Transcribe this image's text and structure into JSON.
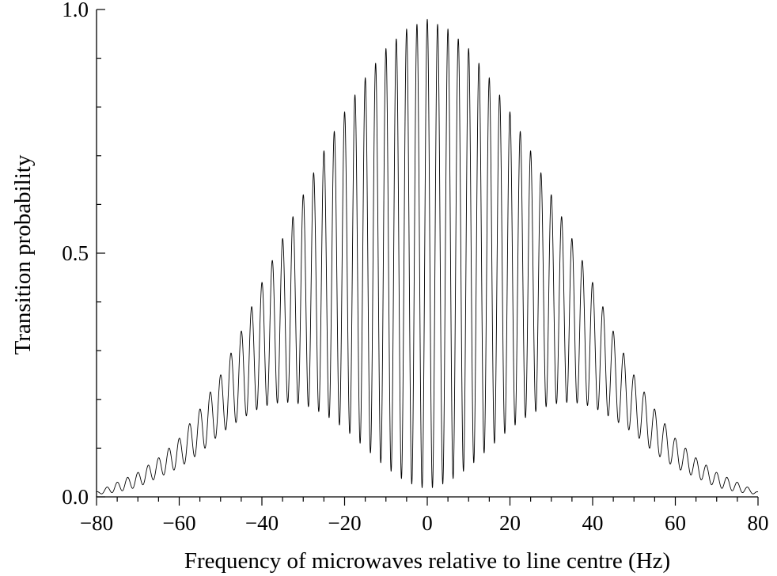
{
  "chart_data": {
    "type": "line",
    "title": "",
    "xlabel": "Frequency of microwaves relative to line centre (Hz)",
    "ylabel": "Transition probability",
    "xlim": [
      -80,
      80
    ],
    "ylim": [
      0,
      1
    ],
    "x_ticks": [
      -80,
      -60,
      -40,
      -20,
      0,
      20,
      40,
      60,
      80
    ],
    "x_tick_labels": [
      "−80",
      "−60",
      "−40",
      "−20",
      "0",
      "20",
      "40",
      "60",
      "80"
    ],
    "y_ticks": [
      0,
      0.5,
      1
    ],
    "y_tick_labels": [
      "0.0",
      "0.5",
      "1.0"
    ],
    "grid": false,
    "legend": "none",
    "line_color": "#000000",
    "series": [
      {
        "fringe_period_hz": 2.5,
        "upper_envelope": {
          "x": [
            -80,
            -75,
            -70,
            -65,
            -60,
            -55,
            -50,
            -45,
            -40,
            -35,
            -30,
            -25,
            -20,
            -15,
            -10,
            -5,
            0,
            5,
            10,
            15,
            20,
            25,
            30,
            35,
            40,
            45,
            50,
            55,
            60,
            65,
            70,
            75,
            80
          ],
          "y": [
            0.01,
            0.03,
            0.05,
            0.08,
            0.12,
            0.18,
            0.25,
            0.34,
            0.44,
            0.53,
            0.62,
            0.71,
            0.79,
            0.86,
            0.92,
            0.96,
            0.98,
            0.96,
            0.92,
            0.86,
            0.79,
            0.71,
            0.62,
            0.53,
            0.44,
            0.34,
            0.25,
            0.18,
            0.12,
            0.08,
            0.05,
            0.03,
            0.01
          ]
        },
        "lower_envelope": {
          "x": [
            -80,
            -75,
            -70,
            -65,
            -60,
            -55,
            -50,
            -45,
            -40,
            -35,
            -30,
            -25,
            -20,
            -15,
            -10,
            -5,
            0,
            5,
            10,
            15,
            20,
            25,
            30,
            35,
            40,
            45,
            50,
            55,
            60,
            65,
            70,
            75,
            80
          ],
          "y": [
            0.005,
            0.01,
            0.02,
            0.04,
            0.06,
            0.09,
            0.13,
            0.16,
            0.185,
            0.195,
            0.19,
            0.17,
            0.14,
            0.1,
            0.06,
            0.03,
            0.015,
            0.03,
            0.06,
            0.1,
            0.14,
            0.17,
            0.19,
            0.195,
            0.185,
            0.16,
            0.13,
            0.09,
            0.06,
            0.04,
            0.02,
            0.01,
            0.005
          ]
        }
      }
    ]
  }
}
